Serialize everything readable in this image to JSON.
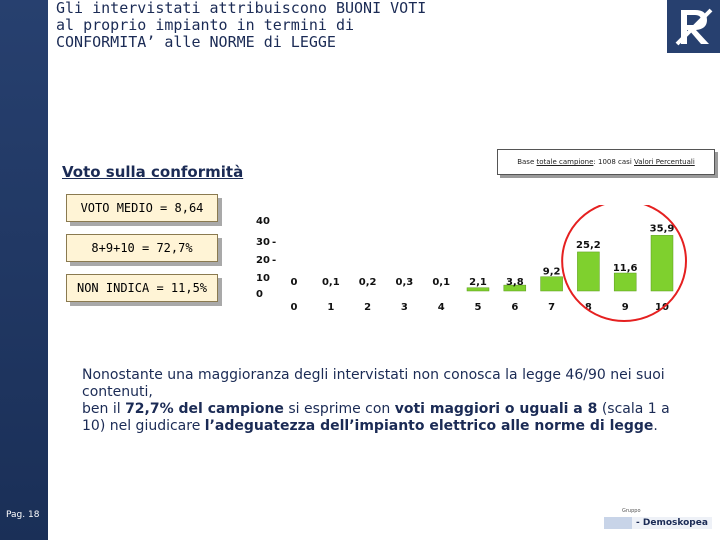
{
  "header": {
    "title": "Gli intervistati attribuiscono BUONI VOTI\nal proprio impianto in termini di\nCONFORMITA’ alle NORME di LEGGE"
  },
  "subtitle": "Voto sulla conformità",
  "base_note": {
    "prefix": "Base ",
    "sample": "totale campione",
    "middle": ": 1008 casi ",
    "values": "Valori Percentuali"
  },
  "stats": {
    "mean": "VOTO MEDIO = 8,64",
    "top": "8+9+10 = 72,7%",
    "no_answer": "NON INDICA = 11,5%"
  },
  "chart_data": {
    "type": "bar",
    "categories": [
      "0",
      "1",
      "2",
      "3",
      "4",
      "5",
      "6",
      "7",
      "8",
      "9",
      "10"
    ],
    "values": [
      0,
      0.1,
      0.2,
      0.3,
      0.1,
      2.1,
      3.8,
      9.2,
      25.2,
      11.6,
      35.9
    ],
    "value_labels": [
      "0",
      "0,1",
      "0,2",
      "0,3",
      "0,1",
      "2,1",
      "3,8",
      "9,2",
      "25,2",
      "11,6",
      "35,9"
    ],
    "y_ticks": [
      "40",
      "30",
      "20",
      "10",
      "0"
    ],
    "ylim": [
      0,
      40
    ],
    "bar_color": "#7fd02e",
    "highlight_color": "#e52020"
  },
  "body": {
    "p1": "Nonostante una maggioranza degli intervistati non conosca la legge 46/90 nei suoi contenuti,",
    "p2a": "ben il ",
    "p2b": "72,7% del campione",
    "p2c": " si esprime con ",
    "p2d": "voti maggiori o uguali a 8",
    "p2e": " (scala 1 a 10) nel giudicare ",
    "p2f": "l’adeguatezza dell’impianto elettrico alle norme di legge",
    "p2g": "."
  },
  "page_label": "Pag. 18",
  "footer": {
    "small": "Gruppo",
    "brand": "- Demoskopea"
  },
  "colors": {
    "sidebar": "#27406f",
    "text": "#1b2b55"
  }
}
